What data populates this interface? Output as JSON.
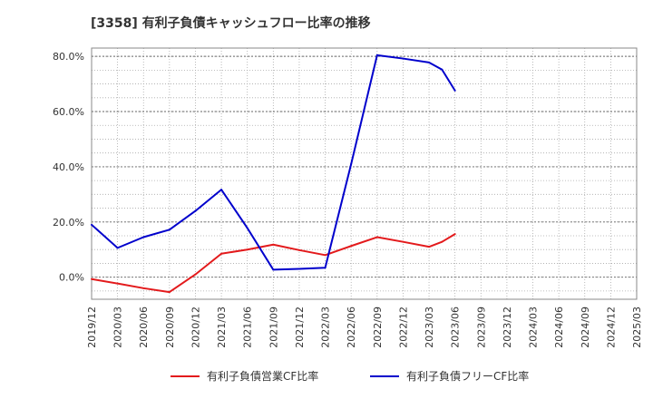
{
  "chart_data": {
    "type": "line",
    "title": "[3358]  有利子負債キャッシュフロー比率の推移",
    "xlabel": "",
    "ylabel": "",
    "ylim": [
      -8,
      83
    ],
    "y_ticks": [
      0,
      20,
      40,
      60,
      80
    ],
    "y_tick_labels": [
      "0.0%",
      "20.0%",
      "40.0%",
      "60.0%",
      "80.0%"
    ],
    "x_tick_labels": [
      "2019/12",
      "2020/03",
      "2020/06",
      "2020/09",
      "2020/12",
      "2021/03",
      "2021/06",
      "2021/09",
      "2021/12",
      "2022/03",
      "2022/06",
      "2022/09",
      "2022/12",
      "2023/03",
      "2023/06",
      "2023/09",
      "2023/12",
      "2024/03",
      "2024/06",
      "2024/09",
      "2024/12",
      "2025/03"
    ],
    "grid": true,
    "legend_position": "bottom",
    "series": [
      {
        "name": "有利子負債営業CF比率",
        "color": "#e31a1c",
        "points": [
          [
            0,
            -0.7
          ],
          [
            1,
            -2.3
          ],
          [
            2,
            -4
          ],
          [
            3,
            -5.4
          ],
          [
            4,
            1
          ],
          [
            5,
            8.5
          ],
          [
            6,
            10
          ],
          [
            7,
            11.8
          ],
          [
            8,
            9.8
          ],
          [
            9,
            8
          ],
          [
            10,
            11.3
          ],
          [
            11,
            14.5
          ],
          [
            12,
            12.8
          ],
          [
            13,
            11
          ],
          [
            13.5,
            12.8
          ],
          [
            14,
            15.6
          ]
        ]
      },
      {
        "name": "有利子負債フリーCF比率",
        "color": "#0000cc",
        "points": [
          [
            0,
            19
          ],
          [
            1,
            10.6
          ],
          [
            2,
            14.5
          ],
          [
            3,
            17.2
          ],
          [
            4,
            24
          ],
          [
            5,
            31.7
          ],
          [
            6,
            17.8
          ],
          [
            7,
            2.7
          ],
          [
            8,
            3
          ],
          [
            9,
            3.4
          ],
          [
            10,
            41
          ],
          [
            11,
            80.4
          ],
          [
            12,
            79.2
          ],
          [
            13,
            77.8
          ],
          [
            13.5,
            75.2
          ],
          [
            14,
            67.6
          ]
        ]
      }
    ]
  }
}
